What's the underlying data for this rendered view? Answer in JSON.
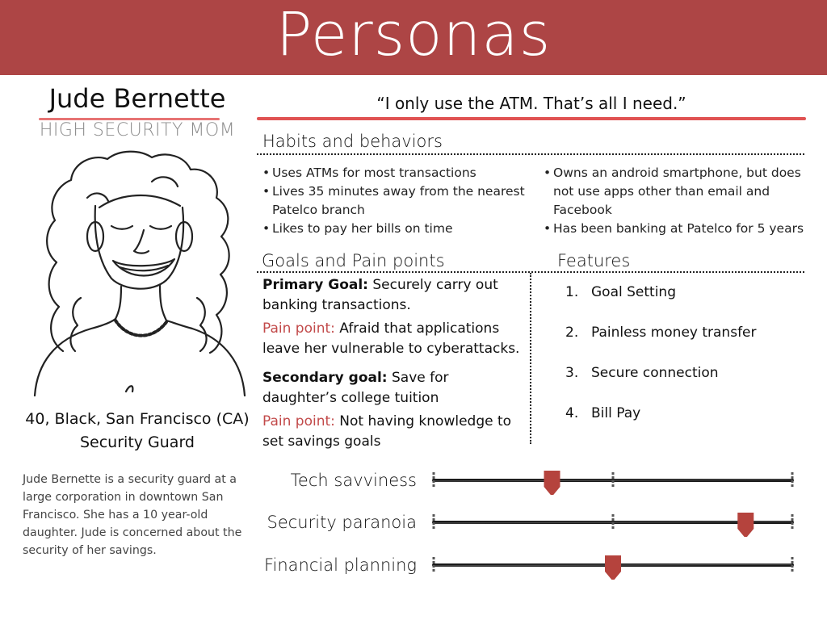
{
  "header": {
    "title": "Personas"
  },
  "persona": {
    "name": "Jude Bernette",
    "role": "HIGH SECURITY MOM",
    "demographics_line1": "40, Black, San Francisco (CA)",
    "demographics_line2": "Security Guard",
    "bio": "Jude Bernette is  a security guard at a large corporation in downtown San Francisco. She has a 10 year-old daughter. Jude is concerned about the security of her savings.",
    "quote": "“I only use the ATM. That’s all I need.”"
  },
  "habits": {
    "title": "Habits and behaviors",
    "left": [
      "Uses ATMs for most transactions",
      "Lives 35 minutes away from the nearest Patelco branch",
      "Likes to pay her bills on time"
    ],
    "right": [
      "Owns an android smartphone, but does not use apps other than email and Facebook",
      "Has been banking at Patelco for 5 years"
    ]
  },
  "goals": {
    "title": "Goals and Pain points",
    "primary_label": "Primary Goal:",
    "primary_text": " Securely carry out banking transactions.",
    "primary_pain_label": "Pain point:",
    "primary_pain_text": " Afraid that applications leave her vulnerable to cyberattacks.",
    "secondary_label": "Secondary goal:",
    "secondary_text": " Save for daughter’s college tuition",
    "secondary_pain_label": "Pain point:",
    "secondary_pain_text": " Not having knowledge to set savings goals"
  },
  "features": {
    "title": "Features",
    "items": [
      {
        "num": "1.",
        "label": "Goal Setting"
      },
      {
        "num": "2.",
        "label": "Painless money transfer"
      },
      {
        "num": "3.",
        "label": "Secure connection"
      },
      {
        "num": "4.",
        "label": "Bill Pay"
      }
    ]
  },
  "sliders": [
    {
      "label": "Tech savviness",
      "level": 0.33
    },
    {
      "label": "Security paranoia",
      "level": 0.87
    },
    {
      "label": "Financial planning",
      "level": 0.5
    }
  ],
  "colors": {
    "header_bg": "#ad4545",
    "accent": "#e05252",
    "pain": "#c24a4a",
    "marker": "#b5433d"
  }
}
